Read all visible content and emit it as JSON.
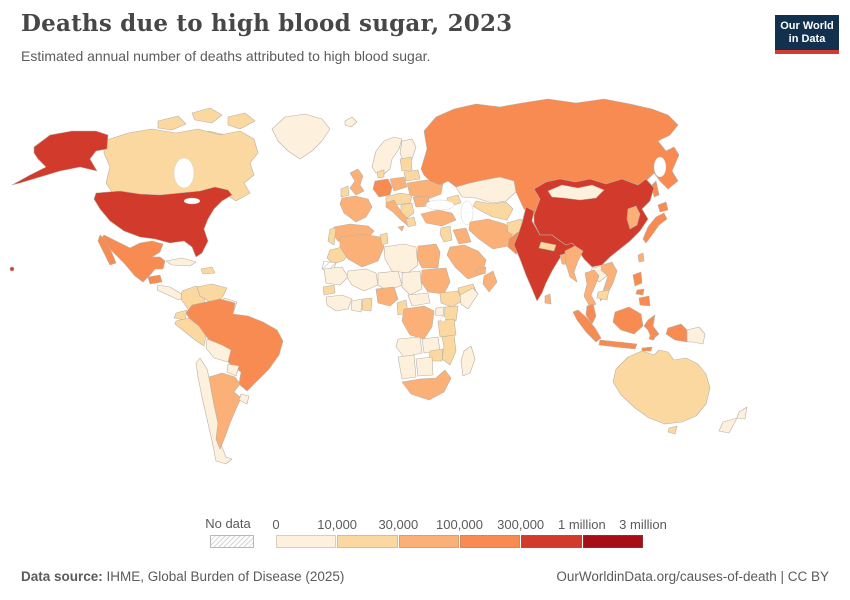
{
  "header": {
    "title": "Deaths due to high blood sugar, 2023",
    "subtitle": "Estimated annual number of deaths attributed to high blood sugar.",
    "logo": {
      "line1": "Our World",
      "line2": "in Data",
      "bg_color": "#12314f",
      "bar_color": "#d13b32"
    }
  },
  "footer": {
    "source_label": "Data source:",
    "source_value": " IHME, Global Burden of Disease (2025)",
    "link_text": "OurWorldinData.org/causes-of-death | CC BY"
  },
  "chart_data": {
    "type": "heatmap",
    "subtype": "world_choropleth_map",
    "title": "Deaths due to high blood sugar, 2023",
    "year": 2023,
    "metric": "Estimated annual number of deaths attributed to high blood sugar",
    "legend": {
      "position": "bottom",
      "no_data_label": "No data",
      "tick_labels": [
        "0",
        "10,000",
        "30,000",
        "100,000",
        "300,000",
        "1 million",
        "3 million"
      ],
      "bins": [
        {
          "id": "b1",
          "range": "0 - 10,000",
          "color": "#fdf0dc"
        },
        {
          "id": "b2",
          "range": "10,000 - 30,000",
          "color": "#fcd8a1"
        },
        {
          "id": "b3",
          "range": "30,000 - 100,000",
          "color": "#fbb077"
        },
        {
          "id": "b4",
          "range": "100,000 - 300,000",
          "color": "#f78b51"
        },
        {
          "id": "b5",
          "range": "300,000 - 1 million",
          "color": "#d23a2c"
        },
        {
          "id": "b6",
          "range": "1 million - 3 million",
          "color": "#a50f15"
        },
        {
          "id": "nodata",
          "range": "No data",
          "color": "hatch"
        }
      ],
      "border_color": "#b9b0a5"
    },
    "countries": {
      "united-states": {
        "label": "United States",
        "bin": "b5"
      },
      "canada": {
        "label": "Canada",
        "bin": "b2"
      },
      "greenland": {
        "label": "Greenland",
        "bin": "b1"
      },
      "mexico": {
        "label": "Mexico",
        "bin": "b4"
      },
      "guatemala": {
        "label": "Guatemala",
        "bin": "b4"
      },
      "central-america": {
        "label": "Honduras / Nicaragua / Costa Rica / Panama",
        "bin": "b1"
      },
      "cuba": {
        "label": "Cuba",
        "bin": "b1"
      },
      "hispaniola": {
        "label": "Haiti / Dominican Republic",
        "bin": "b2"
      },
      "colombia": {
        "label": "Colombia",
        "bin": "b2"
      },
      "venezuela": {
        "label": "Venezuela",
        "bin": "b2"
      },
      "guianas": {
        "label": "Guyana / Suriname",
        "bin": "b1"
      },
      "ecuador": {
        "label": "Ecuador",
        "bin": "b2"
      },
      "peru": {
        "label": "Peru",
        "bin": "b2"
      },
      "brazil": {
        "label": "Brazil",
        "bin": "b4"
      },
      "bolivia": {
        "label": "Bolivia",
        "bin": "b1"
      },
      "paraguay": {
        "label": "Paraguay",
        "bin": "b1"
      },
      "chile": {
        "label": "Chile",
        "bin": "b1"
      },
      "argentina": {
        "label": "Argentina",
        "bin": "b3"
      },
      "uruguay": {
        "label": "Uruguay",
        "bin": "b1"
      },
      "iceland": {
        "label": "Iceland",
        "bin": "b1"
      },
      "norway-sweden": {
        "label": "Norway / Sweden",
        "bin": "b1"
      },
      "finland": {
        "label": "Finland",
        "bin": "b1"
      },
      "united-kingdom": {
        "label": "United Kingdom",
        "bin": "b3"
      },
      "ireland": {
        "label": "Ireland",
        "bin": "b2"
      },
      "denmark": {
        "label": "Denmark",
        "bin": "b2"
      },
      "france": {
        "label": "France",
        "bin": "b3"
      },
      "spain": {
        "label": "Spain",
        "bin": "b3"
      },
      "portugal": {
        "label": "Portugal",
        "bin": "b2"
      },
      "germany": {
        "label": "Germany",
        "bin": "b4"
      },
      "italy": {
        "label": "Italy",
        "bin": "b3"
      },
      "poland": {
        "label": "Poland",
        "bin": "b3"
      },
      "central-europe": {
        "label": "Czechia / Austria / Hungary",
        "bin": "b2"
      },
      "balkans": {
        "label": "Balkans",
        "bin": "b2"
      },
      "greece": {
        "label": "Greece",
        "bin": "b2"
      },
      "romania": {
        "label": "Romania",
        "bin": "b3"
      },
      "ukraine": {
        "label": "Ukraine",
        "bin": "b3"
      },
      "belarus": {
        "label": "Belarus",
        "bin": "b2"
      },
      "baltics": {
        "label": "Baltic states",
        "bin": "b2"
      },
      "russia": {
        "label": "Russia",
        "bin": "b4"
      },
      "kazakhstan": {
        "label": "Kazakhstan",
        "bin": "b1"
      },
      "central-asia": {
        "label": "Uzbekistan / Turkmenistan",
        "bin": "b2"
      },
      "caucasus": {
        "label": "Georgia / Azerbaijan",
        "bin": "b2"
      },
      "turkey": {
        "label": "Turkey",
        "bin": "b3"
      },
      "levant": {
        "label": "Syria / Jordan",
        "bin": "b2"
      },
      "iraq": {
        "label": "Iraq",
        "bin": "b3"
      },
      "iran": {
        "label": "Iran",
        "bin": "b3"
      },
      "saudi-arabia": {
        "label": "Saudi Arabia",
        "bin": "b3"
      },
      "yemen": {
        "label": "Yemen",
        "bin": "b2"
      },
      "oman": {
        "label": "Oman",
        "bin": "b3"
      },
      "gulf-states": {
        "label": "United Arab Emirates / Qatar",
        "bin": "b3"
      },
      "afghanistan": {
        "label": "Afghanistan",
        "bin": "b2"
      },
      "pakistan": {
        "label": "Pakistan",
        "bin": "b4"
      },
      "india": {
        "label": "India",
        "bin": "b5"
      },
      "nepal": {
        "label": "Nepal",
        "bin": "b2"
      },
      "bangladesh": {
        "label": "Bangladesh",
        "bin": "b3"
      },
      "sri-lanka": {
        "label": "Sri Lanka",
        "bin": "b3"
      },
      "china": {
        "label": "China",
        "bin": "b5"
      },
      "mongolia": {
        "label": "Mongolia",
        "bin": "b1"
      },
      "korea": {
        "label": "North Korea / South Korea",
        "bin": "b3"
      },
      "japan": {
        "label": "Japan",
        "bin": "b4"
      },
      "taiwan": {
        "label": "Taiwan",
        "bin": "b3"
      },
      "myanmar": {
        "label": "Myanmar",
        "bin": "b3"
      },
      "thailand": {
        "label": "Thailand",
        "bin": "b3"
      },
      "laos": {
        "label": "Laos",
        "bin": "b1"
      },
      "vietnam": {
        "label": "Vietnam",
        "bin": "b3"
      },
      "cambodia": {
        "label": "Cambodia",
        "bin": "b2"
      },
      "malaysia": {
        "label": "Malaysia",
        "bin": "b4"
      },
      "indonesia": {
        "label": "Indonesia",
        "bin": "b4"
      },
      "philippines": {
        "label": "Philippines",
        "bin": "b4"
      },
      "papua-new-guinea": {
        "label": "Papua New Guinea",
        "bin": "b1"
      },
      "australia": {
        "label": "Australia",
        "bin": "b2"
      },
      "new-zealand": {
        "label": "New Zealand",
        "bin": "b1"
      },
      "morocco": {
        "label": "Morocco",
        "bin": "b2"
      },
      "western-sahara": {
        "label": "Western Sahara",
        "bin": "nodata"
      },
      "algeria": {
        "label": "Algeria",
        "bin": "b3"
      },
      "tunisia": {
        "label": "Tunisia",
        "bin": "b2"
      },
      "libya": {
        "label": "Libya",
        "bin": "b1"
      },
      "egypt": {
        "label": "Egypt",
        "bin": "b3"
      },
      "mauritania": {
        "label": "Mauritania",
        "bin": "b1"
      },
      "mali": {
        "label": "Mali",
        "bin": "b1"
      },
      "niger": {
        "label": "Niger",
        "bin": "b1"
      },
      "chad": {
        "label": "Chad",
        "bin": "b1"
      },
      "sudan": {
        "label": "Sudan",
        "bin": "b3"
      },
      "senegal": {
        "label": "Senegal",
        "bin": "b2"
      },
      "guinea-region": {
        "label": "Guinea / Sierra Leone / Liberia",
        "bin": "b1"
      },
      "ivory-coast": {
        "label": "Cote d'Ivoire",
        "bin": "b1"
      },
      "ghana": {
        "label": "Ghana",
        "bin": "b2"
      },
      "nigeria": {
        "label": "Nigeria",
        "bin": "b3"
      },
      "cameroon": {
        "label": "Cameroon",
        "bin": "b2"
      },
      "central-african-republic": {
        "label": "Central African Republic",
        "bin": "b1"
      },
      "ethiopia": {
        "label": "Ethiopia",
        "bin": "b2"
      },
      "somalia": {
        "label": "Somalia",
        "bin": "b1"
      },
      "uganda": {
        "label": "Uganda",
        "bin": "b1"
      },
      "kenya": {
        "label": "Kenya",
        "bin": "b2"
      },
      "drc": {
        "label": "Democratic Republic of Congo",
        "bin": "b3"
      },
      "tanzania": {
        "label": "Tanzania",
        "bin": "b2"
      },
      "angola": {
        "label": "Angola",
        "bin": "b1"
      },
      "zambia": {
        "label": "Zambia",
        "bin": "b1"
      },
      "mozambique": {
        "label": "Mozambique",
        "bin": "b2"
      },
      "zimbabwe": {
        "label": "Zimbabwe",
        "bin": "b2"
      },
      "namibia": {
        "label": "Namibia",
        "bin": "b1"
      },
      "botswana": {
        "label": "Botswana",
        "bin": "b1"
      },
      "south-africa": {
        "label": "South Africa",
        "bin": "b3"
      },
      "madagascar": {
        "label": "Madagascar",
        "bin": "b1"
      }
    }
  }
}
